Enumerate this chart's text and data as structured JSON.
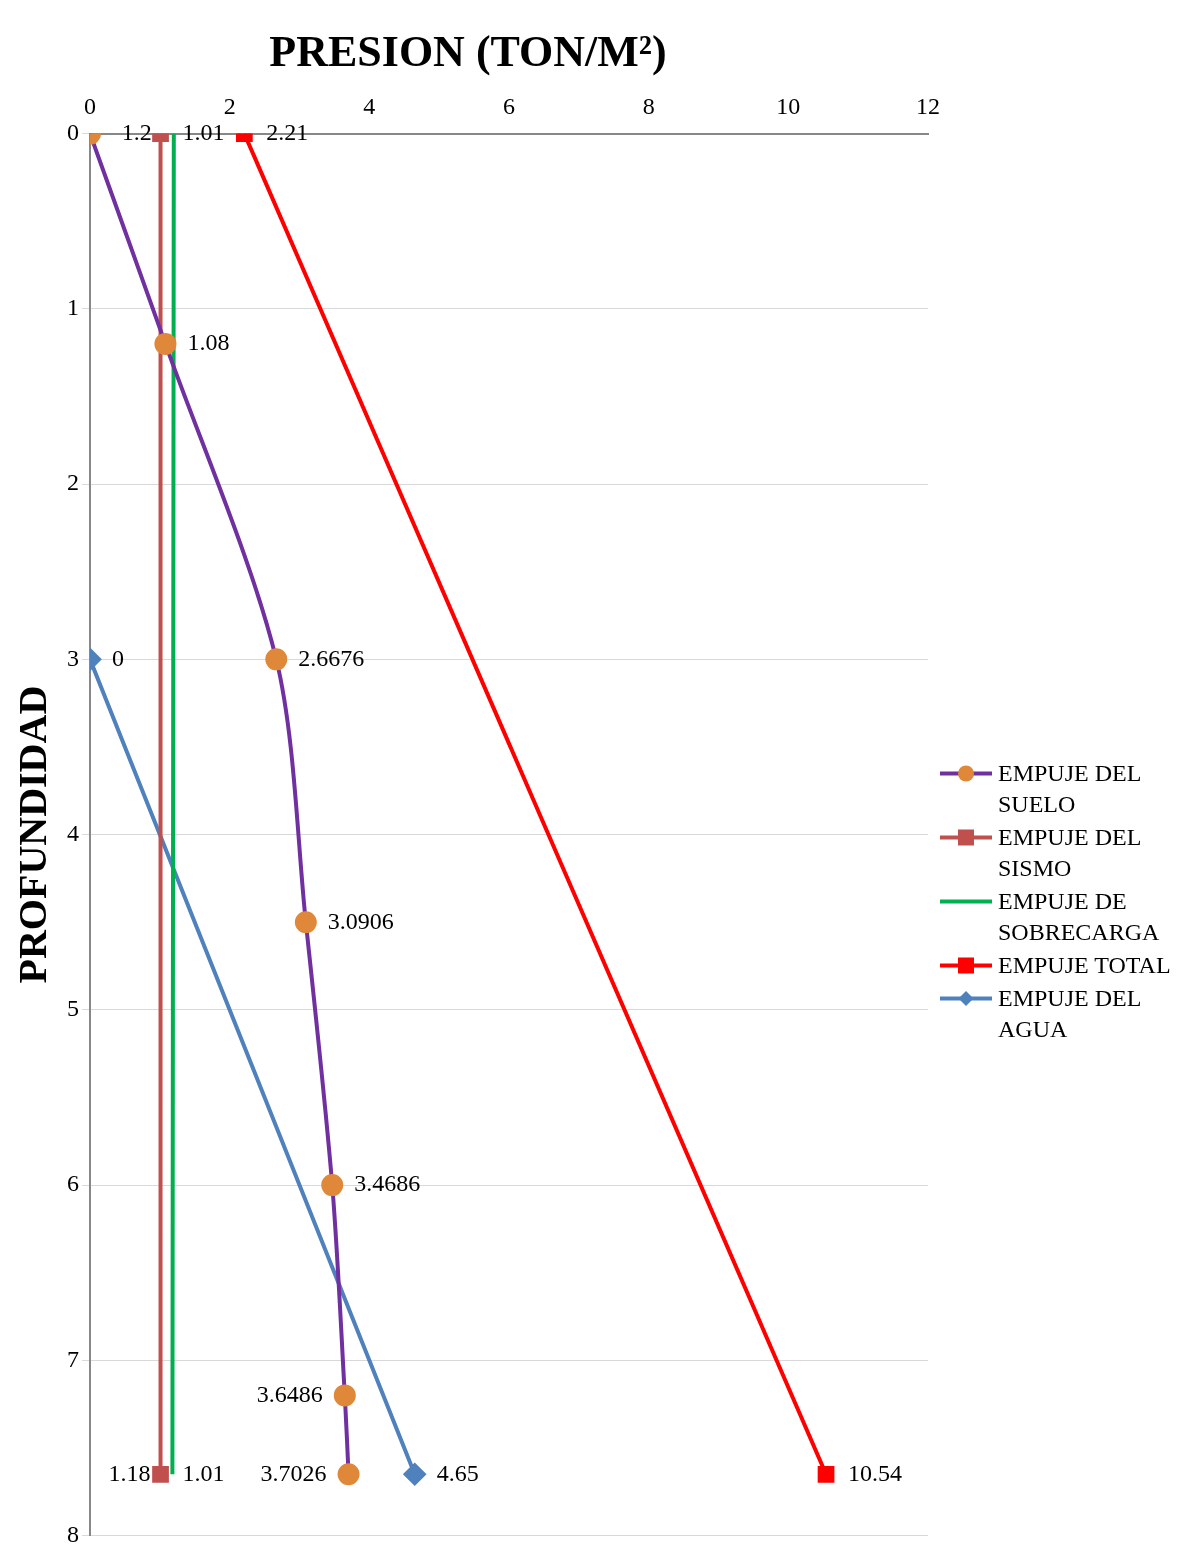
{
  "chart_data": {
    "type": "line",
    "orientation": "horizontal",
    "title": "PRESION (TON/M²)",
    "ylabel": "PROFUNDIDAD",
    "xlim": [
      0,
      12
    ],
    "xticks": [
      0,
      2,
      4,
      6,
      8,
      10,
      12
    ],
    "ylim": [
      8,
      0
    ],
    "yticks": [
      0,
      1,
      2,
      3,
      4,
      5,
      6,
      7,
      8
    ],
    "grid": "y",
    "legend": "right",
    "series": [
      {
        "name": "EMPUJE DEL SUELO",
        "color": "#7030a0",
        "colors": [
          "#e0883a",
          "#e0883a",
          "#e0883a",
          "#e0883a",
          "#e0883a",
          "#e0883a",
          "#e0883a"
        ],
        "marker": "circle",
        "x": [
          0,
          1.2,
          3,
          4.5,
          6,
          7.2,
          7.65
        ],
        "values": [
          0,
          1.08,
          2.6676,
          3.0906,
          3.4686,
          3.6486,
          3.7026
        ],
        "value_labels": [
          null,
          "1.08",
          "2.6676",
          "3.0906",
          "3.4686",
          "3.6486",
          "3.7026"
        ]
      },
      {
        "name": "EMPUJE DEL SISMO",
        "color": "#c0504d",
        "marker": "square",
        "x": [
          0,
          7.65
        ],
        "values": [
          1.01,
          1.01
        ],
        "value_labels": [
          "1.01",
          "1.01"
        ]
      },
      {
        "name": "EMPUJE DE SOBRECARGA",
        "color": "#00b050",
        "marker": "none",
        "x": [
          0,
          7.65
        ],
        "values": [
          1.2,
          1.18
        ],
        "value_labels": [
          "1.2",
          "1.18"
        ]
      },
      {
        "name": "EMPUJE TOTAL",
        "color": "#ff0000",
        "marker": "square",
        "x": [
          0,
          7.65
        ],
        "values": [
          2.21,
          10.54
        ],
        "value_labels": [
          "2.21",
          "10.54"
        ]
      },
      {
        "name": "EMPUJE DEL AGUA",
        "color": "#4f81bd",
        "marker": "diamond",
        "x": [
          3,
          7.65
        ],
        "values": [
          0,
          4.65
        ],
        "value_labels": [
          "0",
          "4.65"
        ]
      }
    ]
  }
}
